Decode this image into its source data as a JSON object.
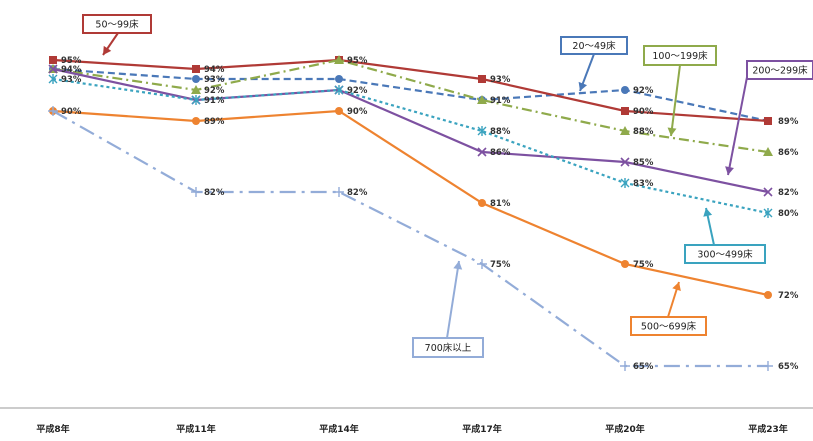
{
  "chart_data": {
    "type": "line",
    "categories": [
      "平成8年",
      "平成11年",
      "平成14年",
      "平成17年",
      "平成20年",
      "平成23年"
    ],
    "ylim": [
      60,
      97
    ],
    "grid": false,
    "legend": "callouts",
    "series": [
      {
        "name": "20～49床",
        "values": [
          94,
          93,
          93,
          91,
          92,
          89
        ],
        "value_labels": [
          "",
          "93%",
          "",
          "",
          "92%",
          ""
        ],
        "color": "#4a78b8",
        "style": "dashed",
        "marker": "circle"
      },
      {
        "name": "50～99床",
        "values": [
          95,
          94,
          95,
          93,
          90,
          89
        ],
        "value_labels": [
          "95%",
          "94%",
          "95%",
          "93%",
          "90%",
          "89%"
        ],
        "color": "#b03a36",
        "style": "solid",
        "marker": "square"
      },
      {
        "name": "100～199床",
        "values": [
          94,
          92,
          95,
          91,
          88,
          86
        ],
        "value_labels": [
          "",
          "92%",
          "",
          "91%",
          "88%",
          "86%"
        ],
        "color": "#8faa4b",
        "style": "dashdot",
        "marker": "triangle"
      },
      {
        "name": "200～299床",
        "values": [
          94,
          91,
          92,
          86,
          85,
          82
        ],
        "value_labels": [
          "94%",
          "91%",
          "92%",
          "86%",
          "85%",
          "82%"
        ],
        "color": "#7d51a1",
        "style": "solid",
        "marker": "x"
      },
      {
        "name": "300～499床",
        "values": [
          93,
          91,
          92,
          88,
          83,
          80
        ],
        "value_labels": [
          "93%",
          "",
          "",
          "88%",
          "83%",
          "80%"
        ],
        "color": "#3aa3bf",
        "style": "dotted",
        "marker": "asterisk"
      },
      {
        "name": "500～699床",
        "values": [
          90,
          89,
          90,
          81,
          75,
          72
        ],
        "value_labels": [
          "90%",
          "89%",
          "90%",
          "81%",
          "75%",
          "72%"
        ],
        "color": "#ee8330",
        "style": "solid",
        "marker": "circle"
      },
      {
        "name": "700床以上",
        "values": [
          90,
          82,
          82,
          75,
          65,
          65
        ],
        "value_labels": [
          "",
          "82%",
          "82%",
          "75%",
          "65%",
          "65%"
        ],
        "color": "#93acd8",
        "style": "longdashdot",
        "marker": "plus"
      }
    ],
    "callouts": [
      {
        "text": "50～99床",
        "color": "#b03a36"
      },
      {
        "text": "20～49床",
        "color": "#4a78b8"
      },
      {
        "text": "100～199床",
        "color": "#8faa4b"
      },
      {
        "text": "200～299床",
        "color": "#7d51a1"
      },
      {
        "text": "300～499床",
        "color": "#3aa3bf"
      },
      {
        "text": "500～699床",
        "color": "#ee8330"
      },
      {
        "text": "700床以上",
        "color": "#93acd8"
      }
    ]
  }
}
